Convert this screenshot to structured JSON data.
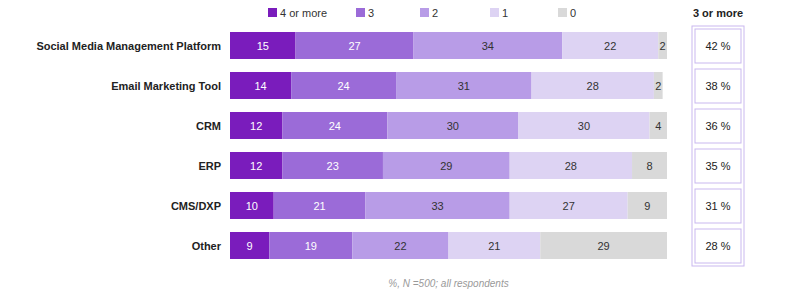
{
  "chart_data": {
    "type": "bar",
    "orientation": "horizontal",
    "stacked": true,
    "data_labels": true,
    "tick_labels": "y",
    "grid": false,
    "legend": "top",
    "categories": [
      "Social Media Management Platform",
      "Email Marketing Tool",
      "CRM",
      "ERP",
      "CMS/DXP",
      "Other"
    ],
    "xlim": [
      0,
      100
    ],
    "series": [
      {
        "name": "4 or more",
        "color": "#7a1cbc",
        "values": [
          15,
          14,
          12,
          12,
          10,
          9
        ]
      },
      {
        "name": "3",
        "color": "#9b6bd8",
        "values": [
          27,
          24,
          24,
          23,
          21,
          19
        ]
      },
      {
        "name": "2",
        "color": "#b89ce7",
        "values": [
          34,
          31,
          30,
          29,
          33,
          22
        ]
      },
      {
        "name": "1",
        "color": "#ddd3f3",
        "values": [
          22,
          28,
          30,
          28,
          27,
          21
        ]
      },
      {
        "name": "0",
        "color": "#d9d9d9",
        "values": [
          2,
          2,
          4,
          8,
          9,
          29
        ]
      }
    ],
    "three_or_more": {
      "title": "3 or more",
      "values": [
        42,
        38,
        36,
        35,
        31,
        28
      ],
      "value_labels": [
        "42 %",
        "38 %",
        "36 %",
        "35 %",
        "31 %",
        "28 %"
      ]
    },
    "caption": "%, N =500; all respondents"
  }
}
